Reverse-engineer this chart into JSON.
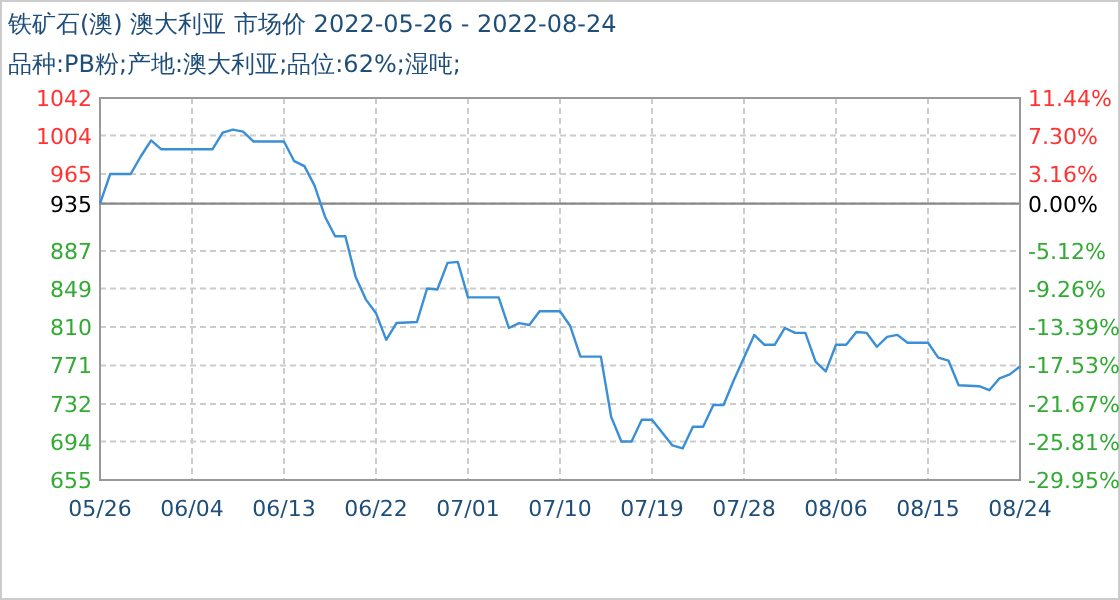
{
  "chart_data": {
    "type": "line",
    "title": "铁矿石(澳) 澳大利亚 市场价 2022-05-26 - 2022-08-24",
    "subtitle": "品种:PB粉;产地:澳大利亚;品位:62%;湿吨;",
    "x": [
      "2022-05-26",
      "2022-05-27",
      "2022-05-29",
      "2022-05-30",
      "2022-05-31",
      "2022-06-01",
      "2022-06-06",
      "2022-06-07",
      "2022-06-08",
      "2022-06-09",
      "2022-06-10",
      "2022-06-13",
      "2022-06-14",
      "2022-06-15",
      "2022-06-16",
      "2022-06-17",
      "2022-06-18",
      "2022-06-19",
      "2022-06-20",
      "2022-06-21",
      "2022-06-22",
      "2022-06-23",
      "2022-06-24",
      "2022-06-26",
      "2022-06-27",
      "2022-06-28",
      "2022-06-29",
      "2022-06-30",
      "2022-07-01",
      "2022-07-04",
      "2022-07-05",
      "2022-07-06",
      "2022-07-07",
      "2022-07-08",
      "2022-07-10",
      "2022-07-11",
      "2022-07-12",
      "2022-07-14",
      "2022-07-15",
      "2022-07-16",
      "2022-07-17",
      "2022-07-18",
      "2022-07-19",
      "2022-07-21",
      "2022-07-22",
      "2022-07-23",
      "2022-07-24",
      "2022-07-25",
      "2022-07-26",
      "2022-07-27",
      "2022-07-29",
      "2022-07-30",
      "2022-07-31",
      "2022-08-01",
      "2022-08-02",
      "2022-08-03",
      "2022-08-04",
      "2022-08-05",
      "2022-08-06",
      "2022-08-07",
      "2022-08-08",
      "2022-08-09",
      "2022-08-10",
      "2022-08-11",
      "2022-08-12",
      "2022-08-13",
      "2022-08-15",
      "2022-08-16",
      "2022-08-17",
      "2022-08-18",
      "2022-08-20",
      "2022-08-21",
      "2022-08-22",
      "2022-08-23",
      "2022-08-24"
    ],
    "series": [
      {
        "color": "#3a8fd6",
        "values": [
          935,
          965,
          965,
          983,
          999,
          990,
          990,
          1007,
          1010,
          1008,
          998,
          998,
          978,
          973,
          953,
          922,
          902,
          902,
          861,
          838,
          824,
          797,
          814,
          815,
          849,
          848,
          875,
          876,
          840,
          840,
          809,
          814,
          812,
          826,
          826,
          811,
          780,
          780,
          719,
          694,
          694,
          716,
          716,
          690,
          687,
          709,
          709,
          731,
          731,
          756,
          802,
          792,
          792,
          809,
          804,
          804,
          775,
          765,
          792,
          792,
          805,
          804,
          790,
          800,
          802,
          794,
          794,
          779,
          776,
          751,
          750,
          746,
          758,
          762,
          770
        ]
      }
    ],
    "xlim": [
      "2022-05-26",
      "2022-08-24"
    ],
    "xticks": [
      {
        "value": "2022-05-26",
        "label": "05/26"
      },
      {
        "value": "2022-06-04",
        "label": "06/04"
      },
      {
        "value": "2022-06-13",
        "label": "06/13"
      },
      {
        "value": "2022-06-22",
        "label": "06/22"
      },
      {
        "value": "2022-07-01",
        "label": "07/01"
      },
      {
        "value": "2022-07-10",
        "label": "07/10"
      },
      {
        "value": "2022-07-19",
        "label": "07/19"
      },
      {
        "value": "2022-07-28",
        "label": "07/28"
      },
      {
        "value": "2022-08-06",
        "label": "08/06"
      },
      {
        "value": "2022-08-15",
        "label": "08/15"
      },
      {
        "value": "2022-08-24",
        "label": "08/24"
      }
    ],
    "ylim": [
      655,
      1042
    ],
    "yticks": [
      655,
      694,
      732,
      771,
      810,
      849,
      887,
      935,
      965,
      1004,
      1042
    ],
    "y2lim": [
      -29.95,
      11.44
    ],
    "y2ticks": [
      {
        "value": -29.95,
        "label": "-29.95%"
      },
      {
        "value": -25.81,
        "label": "-25.81%"
      },
      {
        "value": -21.67,
        "label": "-21.67%"
      },
      {
        "value": -17.53,
        "label": "-17.53%"
      },
      {
        "value": -13.39,
        "label": "-13.39%"
      },
      {
        "value": -9.26,
        "label": "-9.26%"
      },
      {
        "value": -5.12,
        "label": "-5.12%"
      },
      {
        "value": 0,
        "label": "0.00%"
      },
      {
        "value": 3.16,
        "label": "3.16%"
      },
      {
        "value": 7.3,
        "label": "7.30%"
      },
      {
        "value": 11.44,
        "label": "11.44%"
      }
    ],
    "ref_lines": [
      {
        "axis": "y",
        "value": 935,
        "color": "#888888"
      }
    ],
    "grid": true
  }
}
